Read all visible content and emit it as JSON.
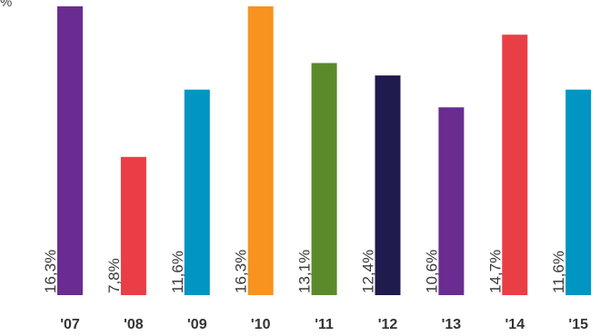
{
  "chart_data": {
    "type": "bar",
    "title": "",
    "xlabel": "",
    "ylabel": "",
    "unit_label": "%",
    "ylim": [
      0,
      16.3
    ],
    "categories": [
      "'07",
      "'08",
      "'09",
      "'10",
      "'11",
      "'12",
      "'13",
      "'14",
      "'15"
    ],
    "values": [
      16.3,
      7.8,
      11.6,
      16.3,
      13.1,
      12.4,
      10.6,
      14.7,
      11.6
    ],
    "value_labels": [
      "16,3%",
      "7,8%",
      "11,6%",
      "16,3%",
      "13,1%",
      "12,4%",
      "10,6%",
      "14,7%",
      "11,6%"
    ],
    "colors": [
      "#6a2c91",
      "#ea3e46",
      "#0095c3",
      "#f7931e",
      "#5b8a2b",
      "#1f1b4d",
      "#6a2c91",
      "#ea3e46",
      "#0095c3"
    ],
    "legend": "none",
    "grid": false
  }
}
